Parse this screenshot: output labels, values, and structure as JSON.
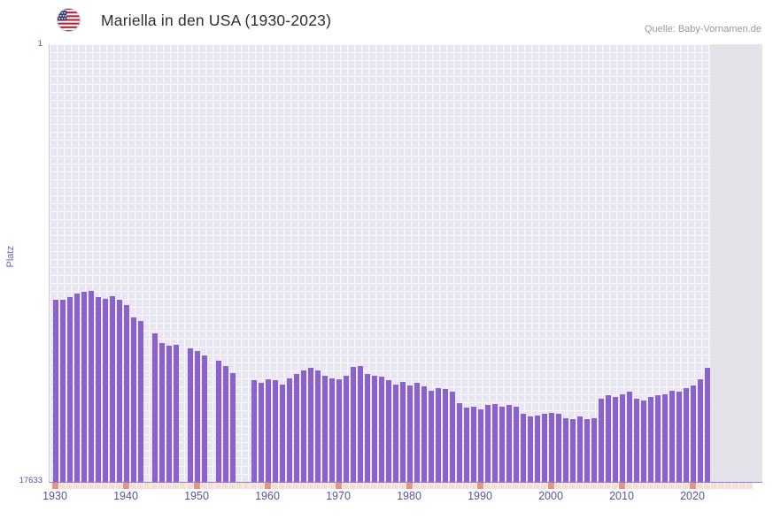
{
  "header": {
    "title": "Mariella in den USA (1930-2023)",
    "source": "Quelle: Baby-Vornamen.de",
    "flag_icon": "us-flag-icon"
  },
  "chart_data": {
    "type": "bar",
    "title": "Mariella in den USA (1930-2023)",
    "xlabel": "",
    "ylabel": "Platz",
    "legend": "none",
    "grid": true,
    "bar_color": "#8a62c9",
    "tick_color_major": "#ee8f7f",
    "tick_color_minor": "#f8ded9",
    "plot_bg_color": "#e9e6f4",
    "future_band_color": "#e4e3e9",
    "y_axis": {
      "min": 1,
      "max": 17633,
      "inverted": true,
      "top_label": "1",
      "bottom_label": "17633"
    },
    "x_axis": {
      "ticks": [
        1930,
        1940,
        1950,
        1960,
        1970,
        1980,
        1990,
        2000,
        2010,
        2020
      ],
      "range_start": 1930,
      "range_end": 2028,
      "shaded_from": 2023
    },
    "points": [
      [
        1930,
        10300
      ],
      [
        1931,
        10280
      ],
      [
        1932,
        10180
      ],
      [
        1933,
        10050
      ],
      [
        1934,
        9980
      ],
      [
        1935,
        9950
      ],
      [
        1936,
        10200
      ],
      [
        1937,
        10250
      ],
      [
        1938,
        10150
      ],
      [
        1939,
        10280
      ],
      [
        1940,
        10500
      ],
      [
        1941,
        11000
      ],
      [
        1942,
        11150
      ],
      [
        1943,
        null
      ],
      [
        1944,
        11650
      ],
      [
        1945,
        12050
      ],
      [
        1946,
        12150
      ],
      [
        1947,
        12100
      ],
      [
        1948,
        null
      ],
      [
        1949,
        12250
      ],
      [
        1950,
        12350
      ],
      [
        1951,
        12550
      ],
      [
        1952,
        null
      ],
      [
        1953,
        12750
      ],
      [
        1954,
        12950
      ],
      [
        1955,
        13250
      ],
      [
        1956,
        null
      ],
      [
        1957,
        null
      ],
      [
        1958,
        13550
      ],
      [
        1959,
        13650
      ],
      [
        1960,
        13500
      ],
      [
        1961,
        13550
      ],
      [
        1962,
        13700
      ],
      [
        1963,
        13450
      ],
      [
        1964,
        13300
      ],
      [
        1965,
        13150
      ],
      [
        1966,
        13050
      ],
      [
        1967,
        13150
      ],
      [
        1968,
        13350
      ],
      [
        1969,
        13450
      ],
      [
        1970,
        13500
      ],
      [
        1971,
        13350
      ],
      [
        1972,
        13000
      ],
      [
        1973,
        12950
      ],
      [
        1974,
        13300
      ],
      [
        1975,
        13350
      ],
      [
        1976,
        13400
      ],
      [
        1977,
        13550
      ],
      [
        1978,
        13700
      ],
      [
        1979,
        13600
      ],
      [
        1980,
        13750
      ],
      [
        1981,
        13650
      ],
      [
        1982,
        13800
      ],
      [
        1983,
        13950
      ],
      [
        1984,
        13850
      ],
      [
        1985,
        13900
      ],
      [
        1986,
        14000
      ],
      [
        1987,
        14450
      ],
      [
        1988,
        14650
      ],
      [
        1989,
        14600
      ],
      [
        1990,
        14700
      ],
      [
        1991,
        14550
      ],
      [
        1992,
        14500
      ],
      [
        1993,
        14600
      ],
      [
        1994,
        14550
      ],
      [
        1995,
        14600
      ],
      [
        1996,
        14900
      ],
      [
        1997,
        15000
      ],
      [
        1998,
        14950
      ],
      [
        1999,
        14900
      ],
      [
        2000,
        14850
      ],
      [
        2001,
        14900
      ],
      [
        2002,
        15050
      ],
      [
        2003,
        15100
      ],
      [
        2004,
        15000
      ],
      [
        2005,
        15100
      ],
      [
        2006,
        15050
      ],
      [
        2007,
        14300
      ],
      [
        2008,
        14150
      ],
      [
        2009,
        14200
      ],
      [
        2010,
        14100
      ],
      [
        2011,
        14000
      ],
      [
        2012,
        14300
      ],
      [
        2013,
        14350
      ],
      [
        2014,
        14200
      ],
      [
        2015,
        14150
      ],
      [
        2016,
        14100
      ],
      [
        2017,
        13950
      ],
      [
        2018,
        14000
      ],
      [
        2019,
        13850
      ],
      [
        2020,
        13750
      ],
      [
        2021,
        13500
      ],
      [
        2022,
        13050
      ],
      [
        2023,
        null
      ]
    ]
  }
}
